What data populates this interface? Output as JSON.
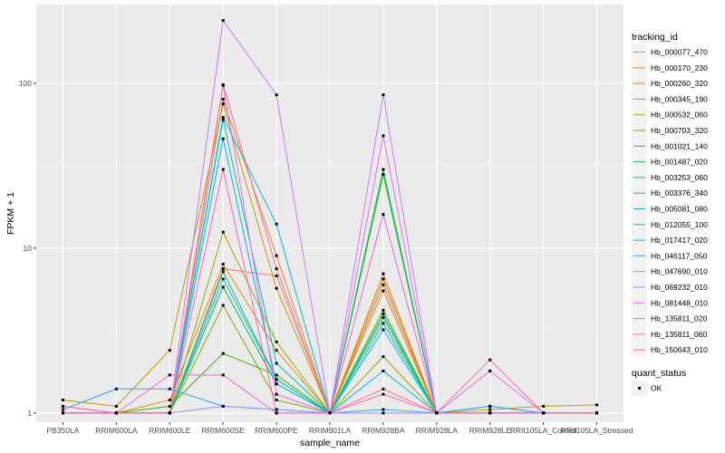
{
  "chart_data": {
    "type": "line",
    "title": "",
    "xlabel": "sample_name",
    "ylabel": "FPKM + 1",
    "y_scale": "log10",
    "ylim": [
      0.88,
      300
    ],
    "y_ticks": [
      1,
      10,
      100
    ],
    "y_tick_labels": [
      "1",
      "10",
      "100"
    ],
    "categories": [
      "PB350LA",
      "RRIM600LA",
      "RRIM600LE",
      "RRIM600SE",
      "RRIM600PE",
      "RRIM901LA",
      "RRIM928BA",
      "RRIM928LA",
      "RRIM928LE",
      "RRII105LA_Control",
      "RRII105LA_Stressed"
    ],
    "legend_color_title": "tracking_id",
    "legend_shape_title": "quant_status",
    "legend_shape_entries": [
      "OK"
    ],
    "series": [
      {
        "name": "Hb_000077_470",
        "color": "#F8766D",
        "values": [
          1.0,
          1.0,
          1.0,
          7.5,
          6.8,
          1.0,
          6.0,
          1.0,
          1.0,
          1.0,
          1.0
        ]
      },
      {
        "name": "Hb_000170_230",
        "color": "#EA8331",
        "values": [
          1.0,
          1.0,
          1.0,
          80.0,
          9.0,
          1.0,
          7.0,
          1.0,
          1.0,
          1.0,
          1.0
        ]
      },
      {
        "name": "Hb_000260_320",
        "color": "#D89000",
        "values": [
          1.0,
          1.0,
          1.2,
          8.0,
          2.4,
          1.0,
          5.5,
          1.0,
          1.0,
          1.0,
          1.0
        ]
      },
      {
        "name": "Hb_000345_190",
        "color": "#C09B00",
        "values": [
          1.2,
          1.1,
          2.4,
          75.0,
          5.7,
          1.0,
          6.5,
          1.0,
          1.05,
          1.1,
          1.12
        ]
      },
      {
        "name": "Hb_000532_060",
        "color": "#A3A500",
        "values": [
          1.0,
          1.0,
          1.0,
          12.5,
          2.7,
          1.0,
          2.2,
          1.0,
          1.0,
          1.0,
          1.0
        ]
      },
      {
        "name": "Hb_000703_320",
        "color": "#7CAE00",
        "values": [
          1.0,
          1.0,
          1.0,
          4.5,
          1.2,
          1.0,
          4.2,
          1.0,
          1.0,
          1.0,
          1.0
        ]
      },
      {
        "name": "Hb_001021_140",
        "color": "#39B600",
        "values": [
          1.0,
          1.0,
          1.1,
          2.3,
          1.7,
          1.0,
          28.0,
          1.0,
          1.0,
          1.0,
          1.0
        ]
      },
      {
        "name": "Hb_001487_020",
        "color": "#00BB4E",
        "values": [
          1.0,
          1.0,
          1.0,
          5.8,
          1.5,
          1.0,
          3.8,
          1.0,
          1.0,
          1.0,
          1.0
        ]
      },
      {
        "name": "Hb_003253_060",
        "color": "#00BF7D",
        "values": [
          1.0,
          1.0,
          1.0,
          7.2,
          1.6,
          1.0,
          30.0,
          1.0,
          1.0,
          1.0,
          1.0
        ]
      },
      {
        "name": "Hb_003376_340",
        "color": "#00C1A3",
        "values": [
          1.0,
          1.0,
          1.0,
          60.0,
          2.0,
          1.0,
          4.0,
          1.0,
          1.0,
          1.0,
          1.0
        ]
      },
      {
        "name": "Hb_005081_080",
        "color": "#00BFC4",
        "values": [
          1.0,
          1.0,
          1.0,
          6.5,
          1.6,
          1.0,
          3.5,
          1.0,
          1.0,
          1.0,
          1.0
        ]
      },
      {
        "name": "Hb_012055_100",
        "color": "#00BAE0",
        "values": [
          1.0,
          1.0,
          1.0,
          62.0,
          14.0,
          1.0,
          3.2,
          1.0,
          1.1,
          1.0,
          1.0
        ]
      },
      {
        "name": "Hb_017417_020",
        "color": "#00B0F6",
        "values": [
          1.0,
          1.0,
          1.0,
          46.0,
          1.5,
          1.0,
          1.8,
          1.0,
          1.0,
          1.0,
          1.0
        ]
      },
      {
        "name": "Hb_046117_050",
        "color": "#35A2FF",
        "values": [
          1.05,
          1.4,
          1.4,
          1.1,
          1.05,
          1.0,
          1.05,
          1.0,
          1.1,
          1.0,
          1.0
        ]
      },
      {
        "name": "Hb_047690_010",
        "color": "#9590FF",
        "values": [
          1.0,
          1.0,
          1.0,
          1.1,
          1.05,
          1.0,
          1.0,
          1.0,
          1.0,
          1.0,
          1.0
        ]
      },
      {
        "name": "Hb_069232_010",
        "color": "#C77CFF",
        "values": [
          1.0,
          1.0,
          1.0,
          240.0,
          85.0,
          1.0,
          85.0,
          1.0,
          1.0,
          1.0,
          1.0
        ]
      },
      {
        "name": "Hb_081448_010",
        "color": "#E76BF3",
        "values": [
          1.0,
          1.0,
          1.0,
          97.0,
          1.3,
          1.0,
          48.0,
          1.0,
          1.8,
          1.0,
          1.0
        ]
      },
      {
        "name": "Hb_135811_020",
        "color": "#FA62DB",
        "values": [
          1.0,
          1.0,
          1.7,
          1.7,
          1.0,
          1.0,
          16.0,
          1.0,
          1.0,
          1.0,
          1.0
        ]
      },
      {
        "name": "Hb_135811_060",
        "color": "#FF62BC",
        "values": [
          1.1,
          1.0,
          1.0,
          30.0,
          1.0,
          1.0,
          1.3,
          1.0,
          1.0,
          1.0,
          1.0
        ]
      },
      {
        "name": "Hb_150643_010",
        "color": "#FF6C91",
        "values": [
          1.1,
          1.0,
          1.0,
          98.0,
          7.5,
          1.0,
          1.4,
          1.0,
          2.1,
          1.0,
          1.0
        ]
      }
    ]
  }
}
